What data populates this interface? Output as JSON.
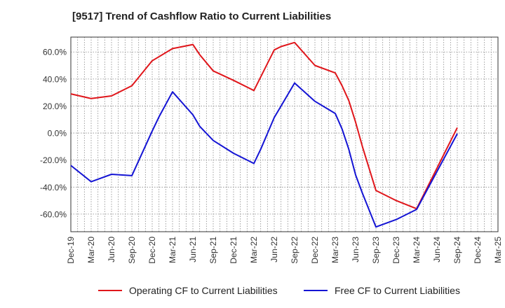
{
  "title": "[9517]  Trend of Cashflow Ratio to Current Liabilities",
  "colors": {
    "operating": "#e0161b",
    "free": "#1414d4",
    "grid": "#888888",
    "axis": "#333333"
  },
  "legend": {
    "operating": "Operating CF to Current Liabilities",
    "free": "Free CF to Current Liabilities"
  },
  "chart_data": {
    "type": "line",
    "title": "[9517]  Trend of Cashflow Ratio to Current Liabilities",
    "xlabel": "",
    "ylabel": "",
    "ylim": [
      -73,
      71
    ],
    "yticks": [
      60,
      40,
      20,
      0,
      -20,
      -40,
      -60
    ],
    "ytick_labels": [
      "60.0%",
      "40.0%",
      "20.0%",
      "0.0%",
      "-20.0%",
      "-40.0%",
      "-60.0%"
    ],
    "x_tick_labels": [
      "Dec-19",
      "Mar-20",
      "Jun-20",
      "Sep-20",
      "Dec-20",
      "Mar-21",
      "Jun-21",
      "Sep-21",
      "Dec-21",
      "Mar-22",
      "Jun-22",
      "Sep-22",
      "Dec-22",
      "Mar-23",
      "Jun-23",
      "Sep-23",
      "Dec-23",
      "Mar-24",
      "Jun-24",
      "Sep-24",
      "Dec-24",
      "Mar-25"
    ],
    "grid": true,
    "legend_position": "bottom",
    "series": [
      {
        "name": "Operating CF to Current Liabilities",
        "color": "#e0161b",
        "points": [
          [
            "Dec-19",
            29
          ],
          [
            "Mar-20",
            25.5
          ],
          [
            "Jun-20",
            27.5
          ],
          [
            "Sep-20",
            35
          ],
          [
            "Dec-20",
            53.5
          ],
          [
            "Mar-21",
            62.5
          ],
          [
            "Jun-21",
            65.5
          ],
          [
            "Jul-21",
            58
          ],
          [
            "Sep-21",
            46
          ],
          [
            "Dec-21",
            39
          ],
          [
            "Mar-22",
            31.5
          ],
          [
            "Jun-22",
            61.5
          ],
          [
            "Jul-22",
            64
          ],
          [
            "Sep-22",
            67
          ],
          [
            "Dec-22",
            50
          ],
          [
            "Mar-23",
            44.5
          ],
          [
            "Apr-23",
            35
          ],
          [
            "May-23",
            24
          ],
          [
            "Jun-23",
            8
          ],
          [
            "Jul-23",
            -10
          ],
          [
            "Sep-23",
            -42.5
          ],
          [
            "Dec-23",
            -50
          ],
          [
            "Mar-24",
            -56
          ],
          [
            "Sep-24",
            4
          ]
        ]
      },
      {
        "name": "Free CF to Current Liabilities",
        "color": "#1414d4",
        "points": [
          [
            "Dec-19",
            -24
          ],
          [
            "Mar-20",
            -36
          ],
          [
            "Jun-20",
            -30.5
          ],
          [
            "Sep-20",
            -31.5
          ],
          [
            "Dec-20",
            1.5
          ],
          [
            "Jan-21",
            12
          ],
          [
            "Mar-21",
            30.5
          ],
          [
            "Jun-21",
            13.5
          ],
          [
            "Jul-21",
            5
          ],
          [
            "Sep-21",
            -5.5
          ],
          [
            "Dec-21",
            -15
          ],
          [
            "Mar-22",
            -22.5
          ],
          [
            "Apr-22",
            -12
          ],
          [
            "Jun-22",
            11.5
          ],
          [
            "Jul-22",
            20
          ],
          [
            "Sep-22",
            37
          ],
          [
            "Dec-22",
            23.5
          ],
          [
            "Mar-23",
            14.5
          ],
          [
            "Apr-23",
            3
          ],
          [
            "May-23",
            -12
          ],
          [
            "Jun-23",
            -31
          ],
          [
            "Jul-23",
            -44.5
          ],
          [
            "Sep-23",
            -69.5
          ],
          [
            "Dec-23",
            -64
          ],
          [
            "Mar-24",
            -56.5
          ],
          [
            "Sep-24",
            -0.5
          ]
        ]
      }
    ]
  }
}
